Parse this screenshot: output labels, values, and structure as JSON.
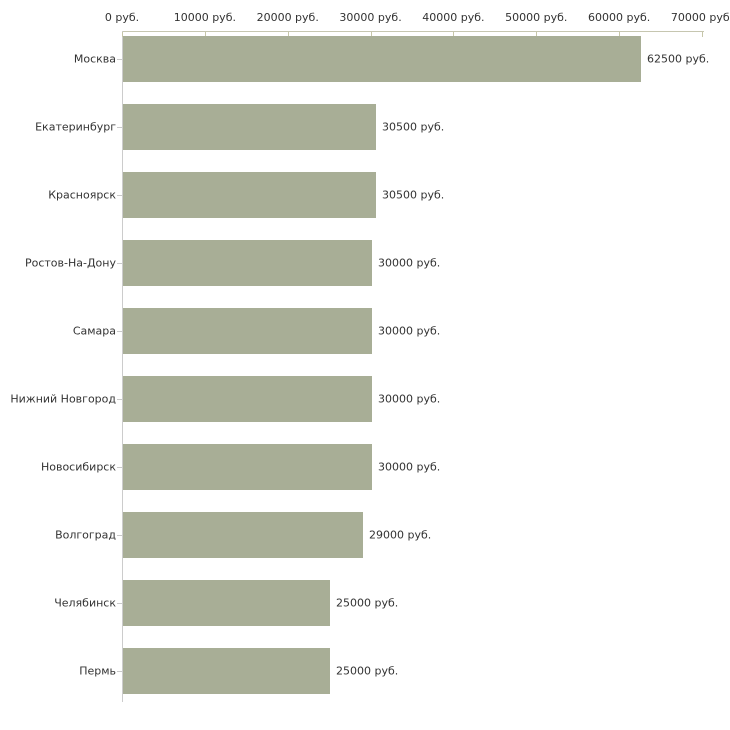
{
  "chart_data": {
    "type": "bar",
    "orientation": "horizontal",
    "title": "",
    "xlabel": "",
    "ylabel": "",
    "unit": "руб.",
    "categories": [
      "Москва",
      "Екатеринбург",
      "Красноярск",
      "Ростов-На-Дону",
      "Самара",
      "Нижний Новгород",
      "Новосибирск",
      "Волгоград",
      "Челябинск",
      "Пермь"
    ],
    "values": [
      62500,
      30500,
      30500,
      30000,
      30000,
      30000,
      30000,
      29000,
      25000,
      25000
    ],
    "value_labels": [
      "62500 руб.",
      "30500 руб.",
      "30500 руб.",
      "30000 руб.",
      "30000 руб.",
      "30000 руб.",
      "30000 руб.",
      "29000 руб.",
      "25000 руб.",
      "25000 руб."
    ],
    "xlim": [
      0,
      70000
    ],
    "x_ticks": [
      0,
      10000,
      20000,
      30000,
      40000,
      50000,
      60000,
      70000
    ],
    "x_tick_labels": [
      "0 руб.",
      "10000 руб.",
      "20000 руб.",
      "30000 руб.",
      "40000 руб.",
      "50000 руб.",
      "60000 руб.",
      "70000 руб."
    ],
    "legend": [],
    "grid": false,
    "bar_color": "#a8ae96",
    "axis_color": "#c6c6b0",
    "text_color": "#333333",
    "background_color": "#ffffff"
  }
}
